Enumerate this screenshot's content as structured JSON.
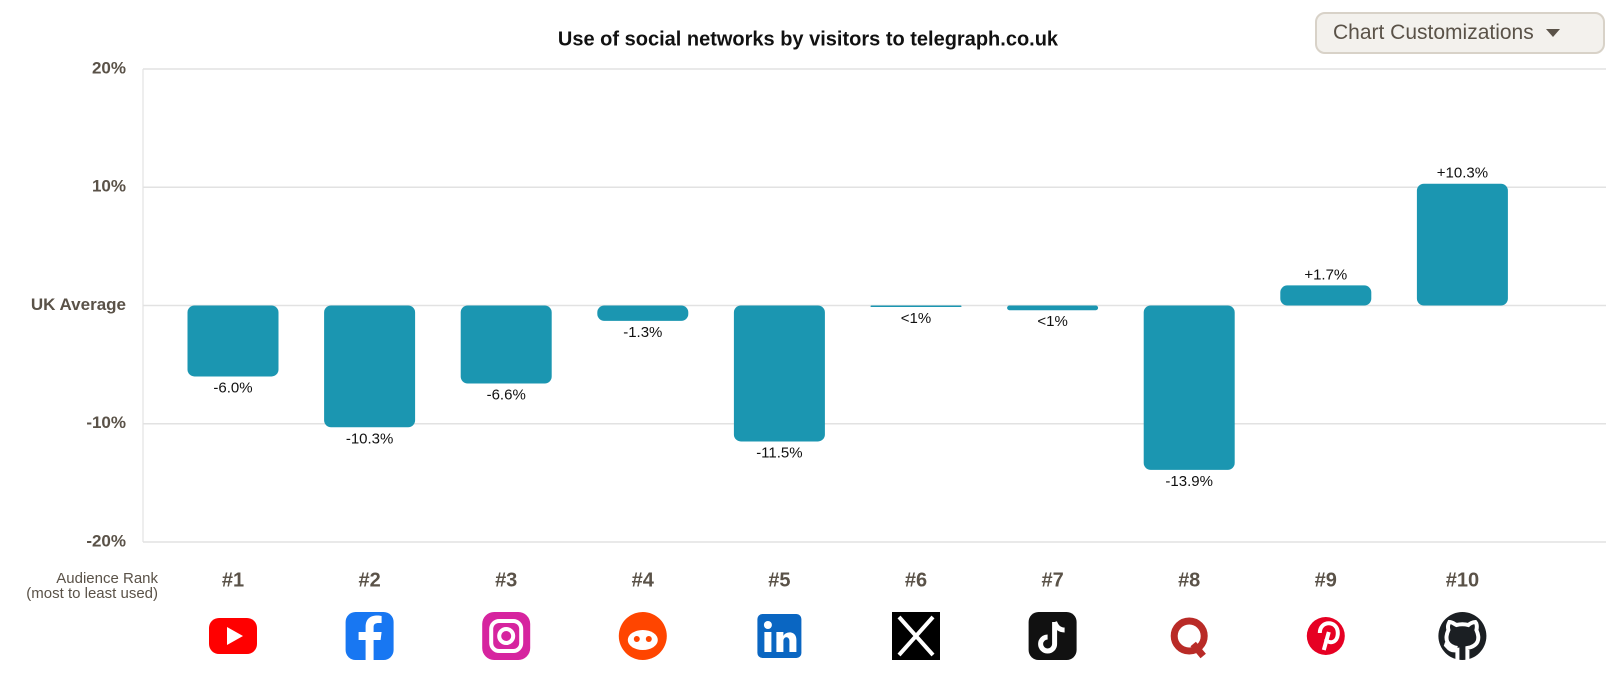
{
  "chart_data": {
    "type": "bar",
    "title": "Use of social networks by visitors to telegraph.co.uk",
    "categories": [
      "#1",
      "#2",
      "#3",
      "#4",
      "#5",
      "#6",
      "#7",
      "#8",
      "#9",
      "#10"
    ],
    "values": [
      -6.0,
      -10.3,
      -6.6,
      -1.3,
      -11.5,
      -0.1,
      -0.4,
      -13.9,
      1.7,
      10.3
    ],
    "value_labels": [
      "-6.0%",
      "-10.3%",
      "-6.6%",
      "-1.3%",
      "-11.5%",
      "<1%",
      "<1%",
      "-13.9%",
      "+1.7%",
      "+10.3%"
    ],
    "color": "#1b96b1",
    "ylim": [
      -20,
      20
    ],
    "yticks": [
      {
        "value": -20,
        "label": "-20%"
      },
      {
        "value": -10,
        "label": "-10%"
      },
      {
        "value": 0,
        "label": "UK Average"
      },
      {
        "value": 10,
        "label": "10%"
      },
      {
        "value": 20,
        "label": "20%"
      }
    ],
    "grid": true,
    "x_axis_label": [
      "Audience Rank",
      "(most to least used)"
    ]
  },
  "controls": {
    "button": "Chart Customizations"
  }
}
